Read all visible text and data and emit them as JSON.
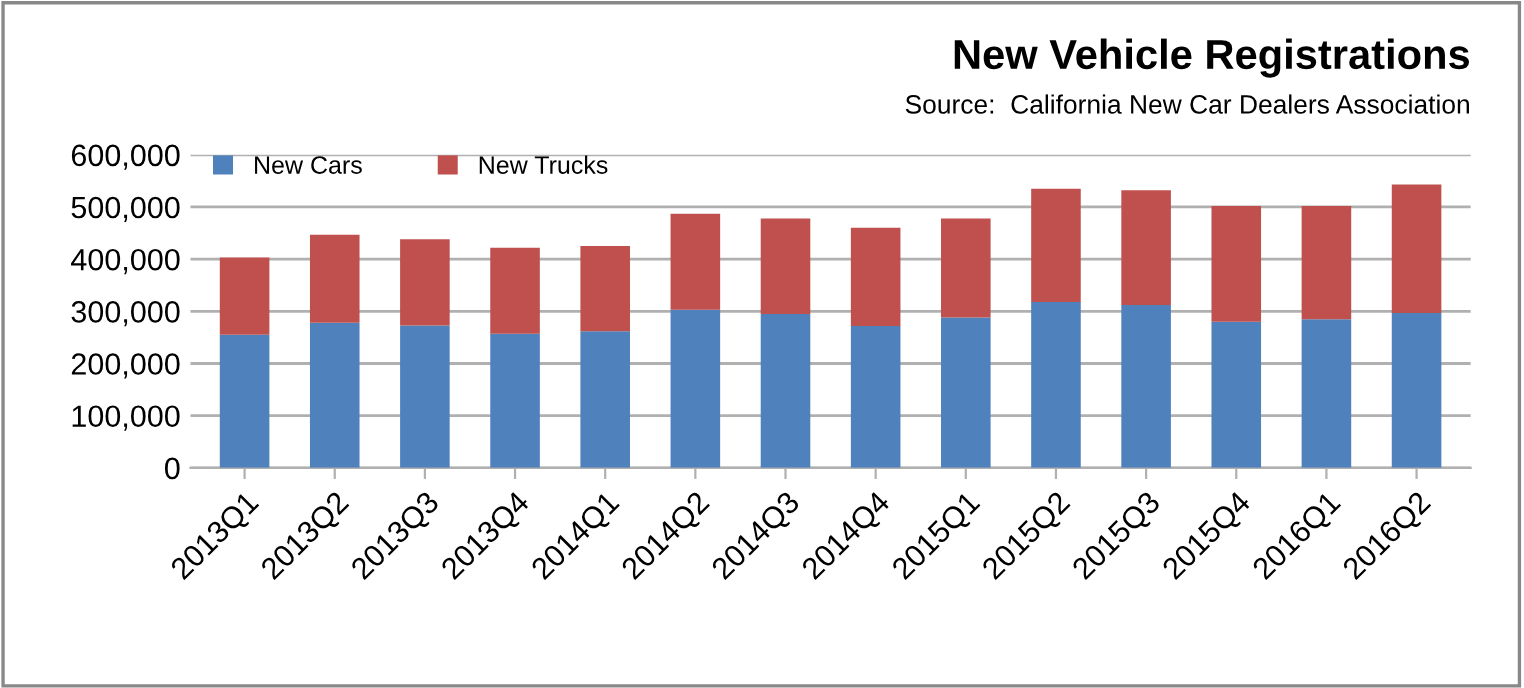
{
  "chart_data": {
    "type": "bar",
    "title": "New Vehicle Registrations",
    "annotations": [
      "Source:  California New Car Dealers Association"
    ],
    "categories": [
      "2013Q1",
      "2013Q2",
      "2013Q3",
      "2013Q4",
      "2014Q1",
      "2014Q2",
      "2014Q3",
      "2014Q4",
      "2015Q1",
      "2015Q2",
      "2015Q3",
      "2015Q4",
      "2016Q1",
      "2016Q2"
    ],
    "stacked": true,
    "series": [
      {
        "name": "New Cars",
        "color": "#4f81bd",
        "values": [
          255000,
          278000,
          273000,
          257000,
          262000,
          303000,
          295000,
          272000,
          288000,
          318000,
          312000,
          280000,
          285000,
          297000
        ]
      },
      {
        "name": "New Trucks",
        "color": "#c0504d",
        "values": [
          148000,
          169000,
          165000,
          165000,
          163000,
          184000,
          183000,
          188000,
          190000,
          217000,
          220000,
          222000,
          217000,
          246000
        ]
      }
    ],
    "ylim": [
      0,
      600000
    ],
    "yticks": [
      {
        "value": 0,
        "label": "0"
      },
      {
        "value": 100000,
        "label": "100,000"
      },
      {
        "value": 200000,
        "label": "200,000"
      },
      {
        "value": 300000,
        "label": "300,000"
      },
      {
        "value": 400000,
        "label": "400,000"
      },
      {
        "value": 500000,
        "label": "500,000"
      },
      {
        "value": 600000,
        "label": "600,000"
      }
    ],
    "grid": "y",
    "legend": "top left"
  }
}
